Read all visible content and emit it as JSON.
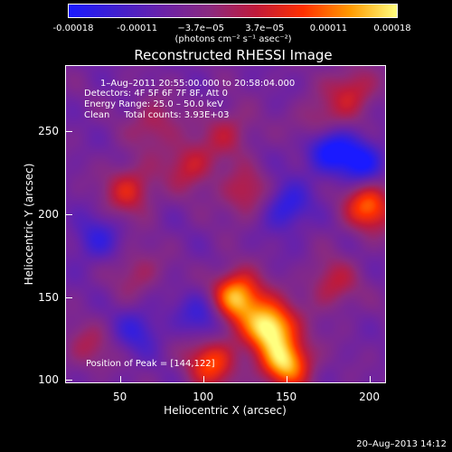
{
  "chart_data": {
    "type": "heatmap",
    "title": "Reconstructed RHESSI Image",
    "xlabel": "Heliocentric X (arcsec)",
    "ylabel": "Heliocentric Y (arcsec)",
    "xlim": [
      17,
      210
    ],
    "ylim": [
      98,
      290
    ],
    "x_ticks": [
      "50",
      "100",
      "150",
      "200"
    ],
    "y_ticks": [
      "100",
      "150",
      "200",
      "250"
    ],
    "x_tick_values": [
      50,
      100,
      150,
      200
    ],
    "y_tick_values": [
      100,
      150,
      200,
      250
    ],
    "colorbar": {
      "ticks": [
        "-0.00018",
        "-0.00011",
        "−3.7e−05",
        "3.7e−05",
        "0.00011",
        "0.00018"
      ],
      "range": [
        -0.00018,
        0.00018
      ],
      "units_label": "(photons cm⁻² s⁻¹ asec⁻²)",
      "colors": [
        "#1a1aff",
        "#4020d0",
        "#6a22a8",
        "#8a2a80",
        "#c01a3a",
        "#ff3000",
        "#ff9a00",
        "#ffff80"
      ]
    },
    "annotations": {
      "time": "1–Aug–2011 20:55:00.000 to 20:58:04.000",
      "detectors": "Detectors: 4F 5F 6F 7F 8F, Att 0",
      "energy": "Energy Range: 25.0 – 50.0 keV",
      "clean": "Clean     Total counts: 3.93E+03",
      "peak": "Position of Peak = [144,122]"
    },
    "sources": [
      {
        "x": 140,
        "y": 132,
        "amplitude": 1.0
      },
      {
        "x": 120,
        "y": 150,
        "amplitude": 0.9
      },
      {
        "x": 150,
        "y": 110,
        "amplitude": 0.85
      },
      {
        "x": 105,
        "y": 110,
        "amplitude": 0.6
      },
      {
        "x": 200,
        "y": 205,
        "amplitude": 0.65
      },
      {
        "x": 55,
        "y": 215,
        "amplitude": 0.45
      },
      {
        "x": 92,
        "y": 230,
        "amplitude": 0.4
      },
      {
        "x": 125,
        "y": 213,
        "amplitude": 0.35
      },
      {
        "x": 178,
        "y": 158,
        "amplitude": 0.35
      },
      {
        "x": 190,
        "y": 275,
        "amplitude": 0.4
      },
      {
        "x": 70,
        "y": 255,
        "amplitude": 0.3
      },
      {
        "x": 115,
        "y": 250,
        "amplitude": 0.3
      },
      {
        "x": 170,
        "y": 255,
        "amplitude": 0.3
      },
      {
        "x": 60,
        "y": 165,
        "amplitude": 0.25
      },
      {
        "x": 30,
        "y": 120,
        "amplitude": 0.25
      }
    ],
    "negative_sources": [
      {
        "x": 175,
        "y": 240,
        "amplitude": 0.55
      },
      {
        "x": 195,
        "y": 232,
        "amplitude": 0.5
      },
      {
        "x": 150,
        "y": 205,
        "amplitude": 0.4
      },
      {
        "x": 100,
        "y": 140,
        "amplitude": 0.35
      },
      {
        "x": 35,
        "y": 185,
        "amplitude": 0.3
      },
      {
        "x": 60,
        "y": 130,
        "amplitude": 0.3
      }
    ]
  },
  "timestamp": "20–Aug–2013 14:12"
}
